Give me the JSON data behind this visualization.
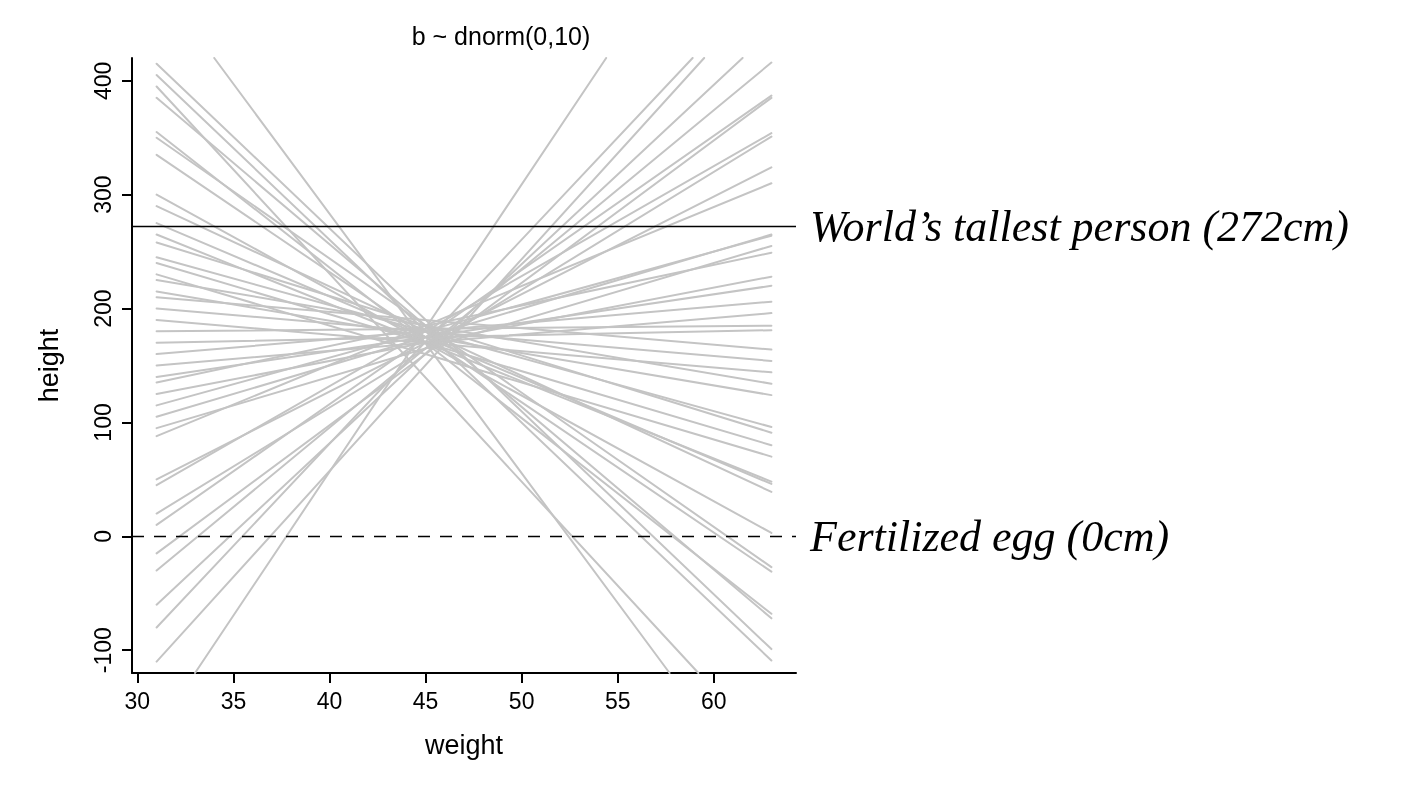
{
  "chart_data": {
    "type": "line",
    "title": "b ~ dnorm(0,10)",
    "xlabel": "weight",
    "ylabel": "height",
    "xlim": [
      29.72,
      64.28
    ],
    "ylim": [
      -120,
      420
    ],
    "xticks": [
      30,
      35,
      40,
      45,
      50,
      55,
      60
    ],
    "yticks": [
      -100,
      0,
      100,
      200,
      300,
      400
    ],
    "grid": false,
    "marker": "none",
    "line_style": "solid",
    "ref_lines": [
      {
        "axis": "y",
        "value": 272,
        "label": "World’s tallest person (272cm)",
        "color": "#000000",
        "line_style": "solid"
      },
      {
        "axis": "y",
        "value": 0,
        "label": "Fertilized egg (0cm)",
        "color": "#000000",
        "line_style": "dashed"
      }
    ],
    "series": [
      {
        "color": "#c4c4c4",
        "x": [
          31,
          63
        ],
        "values": [
          415,
          -99
        ]
      },
      {
        "color": "#c4c4c4",
        "x": [
          31,
          63
        ],
        "values": [
          405,
          -109
        ]
      },
      {
        "color": "#c4c4c4",
        "x": [
          31,
          63
        ],
        "values": [
          385,
          -72
        ]
      },
      {
        "color": "#c4c4c4",
        "x": [
          31,
          63
        ],
        "values": [
          355,
          -68
        ]
      },
      {
        "color": "#c4c4c4",
        "x": [
          31,
          63
        ],
        "values": [
          350,
          -27
        ]
      },
      {
        "color": "#c4c4c4",
        "x": [
          31,
          63
        ],
        "values": [
          335,
          -31
        ]
      },
      {
        "color": "#c4c4c4",
        "x": [
          31,
          63
        ],
        "values": [
          300,
          3
        ]
      },
      {
        "color": "#c4c4c4",
        "x": [
          31,
          63
        ],
        "values": [
          290,
          39
        ]
      },
      {
        "color": "#c4c4c4",
        "x": [
          31,
          63
        ],
        "values": [
          275,
          46
        ]
      },
      {
        "color": "#c4c4c4",
        "x": [
          31,
          63
        ],
        "values": [
          265,
          48
        ]
      },
      {
        "color": "#c4c4c4",
        "x": [
          31,
          63
        ],
        "values": [
          258,
          91
        ]
      },
      {
        "color": "#c4c4c4",
        "x": [
          31,
          63
        ],
        "values": [
          245,
          96
        ]
      },
      {
        "color": "#c4c4c4",
        "x": [
          31,
          63
        ],
        "values": [
          240,
          80
        ]
      },
      {
        "color": "#c4c4c4",
        "x": [
          31,
          63
        ],
        "values": [
          230,
          70
        ]
      },
      {
        "color": "#c4c4c4",
        "x": [
          31,
          63
        ],
        "values": [
          225,
          134
        ]
      },
      {
        "color": "#c4c4c4",
        "x": [
          31,
          63
        ],
        "values": [
          215,
          124
        ]
      },
      {
        "color": "#c4c4c4",
        "x": [
          31,
          63
        ],
        "values": [
          210,
          164
        ]
      },
      {
        "color": "#c4c4c4",
        "x": [
          31,
          63
        ],
        "values": [
          200,
          154
        ]
      },
      {
        "color": "#c4c4c4",
        "x": [
          31,
          63
        ],
        "values": [
          190,
          144
        ]
      },
      {
        "color": "#c4c4c4",
        "x": [
          31,
          63
        ],
        "values": [
          180,
          185
        ]
      },
      {
        "color": "#c4c4c4",
        "x": [
          31,
          63
        ],
        "values": [
          170,
          181
        ]
      },
      {
        "color": "#c4c4c4",
        "x": [
          31,
          63
        ],
        "values": [
          160,
          206
        ]
      },
      {
        "color": "#c4c4c4",
        "x": [
          31,
          63
        ],
        "values": [
          150,
          196
        ]
      },
      {
        "color": "#c4c4c4",
        "x": [
          31,
          63
        ],
        "values": [
          140,
          220
        ]
      },
      {
        "color": "#c4c4c4",
        "x": [
          31,
          63
        ],
        "values": [
          135,
          249
        ]
      },
      {
        "color": "#c4c4c4",
        "x": [
          31,
          63
        ],
        "values": [
          125,
          228
        ]
      },
      {
        "color": "#c4c4c4",
        "x": [
          31,
          63
        ],
        "values": [
          115,
          264
        ]
      },
      {
        "color": "#c4c4c4",
        "x": [
          31,
          63
        ],
        "values": [
          105,
          265
        ]
      },
      {
        "color": "#c4c4c4",
        "x": [
          31,
          63
        ],
        "values": [
          95,
          255
        ]
      },
      {
        "color": "#c4c4c4",
        "x": [
          31,
          63
        ],
        "values": [
          88,
          310
        ]
      },
      {
        "color": "#c4c4c4",
        "x": [
          31,
          63
        ],
        "values": [
          50,
          324
        ]
      },
      {
        "color": "#c4c4c4",
        "x": [
          31,
          63
        ],
        "values": [
          45,
          354
        ]
      },
      {
        "color": "#c4c4c4",
        "x": [
          31,
          63
        ],
        "values": [
          20,
          351
        ]
      },
      {
        "color": "#c4c4c4",
        "x": [
          31,
          63
        ],
        "values": [
          10,
          387
        ]
      },
      {
        "color": "#c4c4c4",
        "x": [
          31,
          63
        ],
        "values": [
          -15,
          385
        ]
      },
      {
        "color": "#c4c4c4",
        "x": [
          31,
          63
        ],
        "values": [
          -30,
          416
        ]
      },
      {
        "color": "#c4c4c4",
        "x": [
          31,
          61.5
        ],
        "values": [
          -60,
          420
        ]
      },
      {
        "color": "#c4c4c4",
        "x": [
          31,
          58.9
        ],
        "values": [
          -80,
          420
        ]
      },
      {
        "color": "#c4c4c4",
        "x": [
          31,
          59.5
        ],
        "values": [
          -110,
          420
        ]
      },
      {
        "color": "#c4c4c4",
        "x": [
          33,
          54.4
        ],
        "values": [
          -120,
          420
        ]
      },
      {
        "color": "#c4c4c4",
        "x": [
          34,
          57.7
        ],
        "values": [
          420,
          -120
        ]
      },
      {
        "color": "#c4c4c4",
        "x": [
          31,
          59.2
        ],
        "values": [
          395,
          -120
        ]
      }
    ]
  }
}
